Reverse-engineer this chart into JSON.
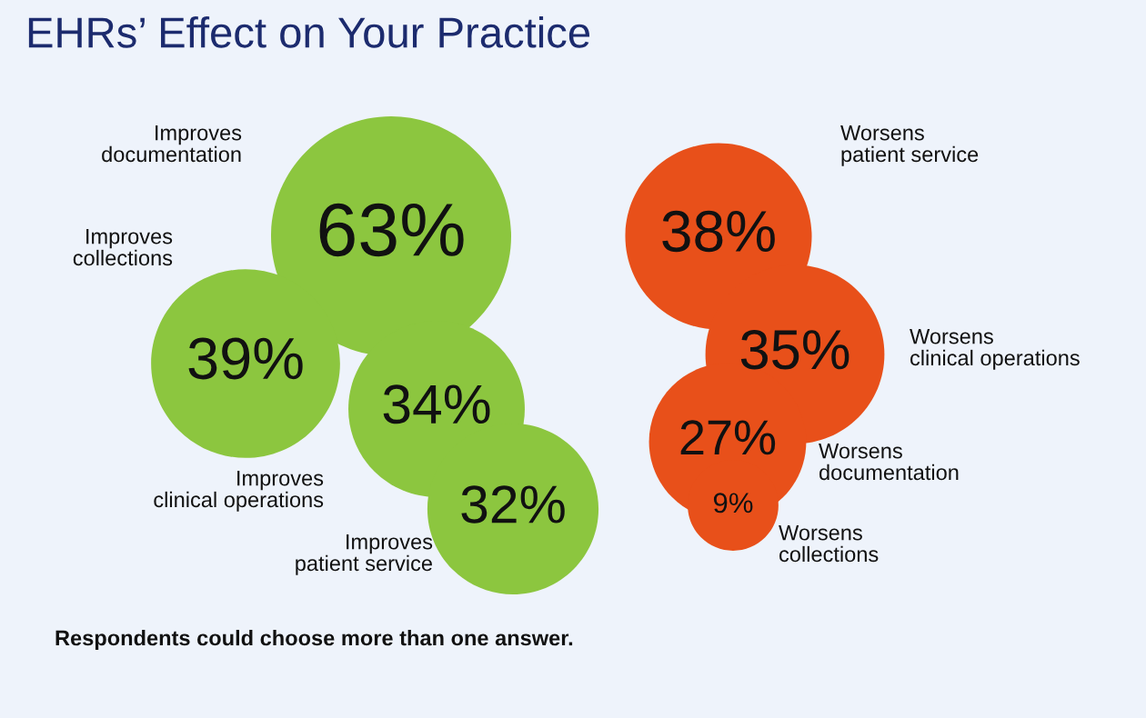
{
  "chart_data": {
    "type": "other",
    "title": "EHRs’ Effect on Your Practice",
    "categories": [
      "Improves documentation",
      "Improves collections",
      "Improves clinical operations",
      "Improves patient service",
      "Worsens patient service",
      "Worsens clinical operations",
      "Worsens documentation",
      "Worsens collections"
    ],
    "values": [
      63,
      39,
      34,
      32,
      38,
      35,
      27,
      9
    ],
    "value_labels": [
      "63%",
      "39%",
      "34%",
      "32%",
      "38%",
      "35%",
      "27%",
      "9%"
    ],
    "colors": [
      "#8cc63f",
      "#8cc63f",
      "#8cc63f",
      "#8cc63f",
      "#e8501a",
      "#e8501a",
      "#e8501a",
      "#e8501a"
    ],
    "annotations": [
      "Respondents could choose more than one answer."
    ]
  }
}
